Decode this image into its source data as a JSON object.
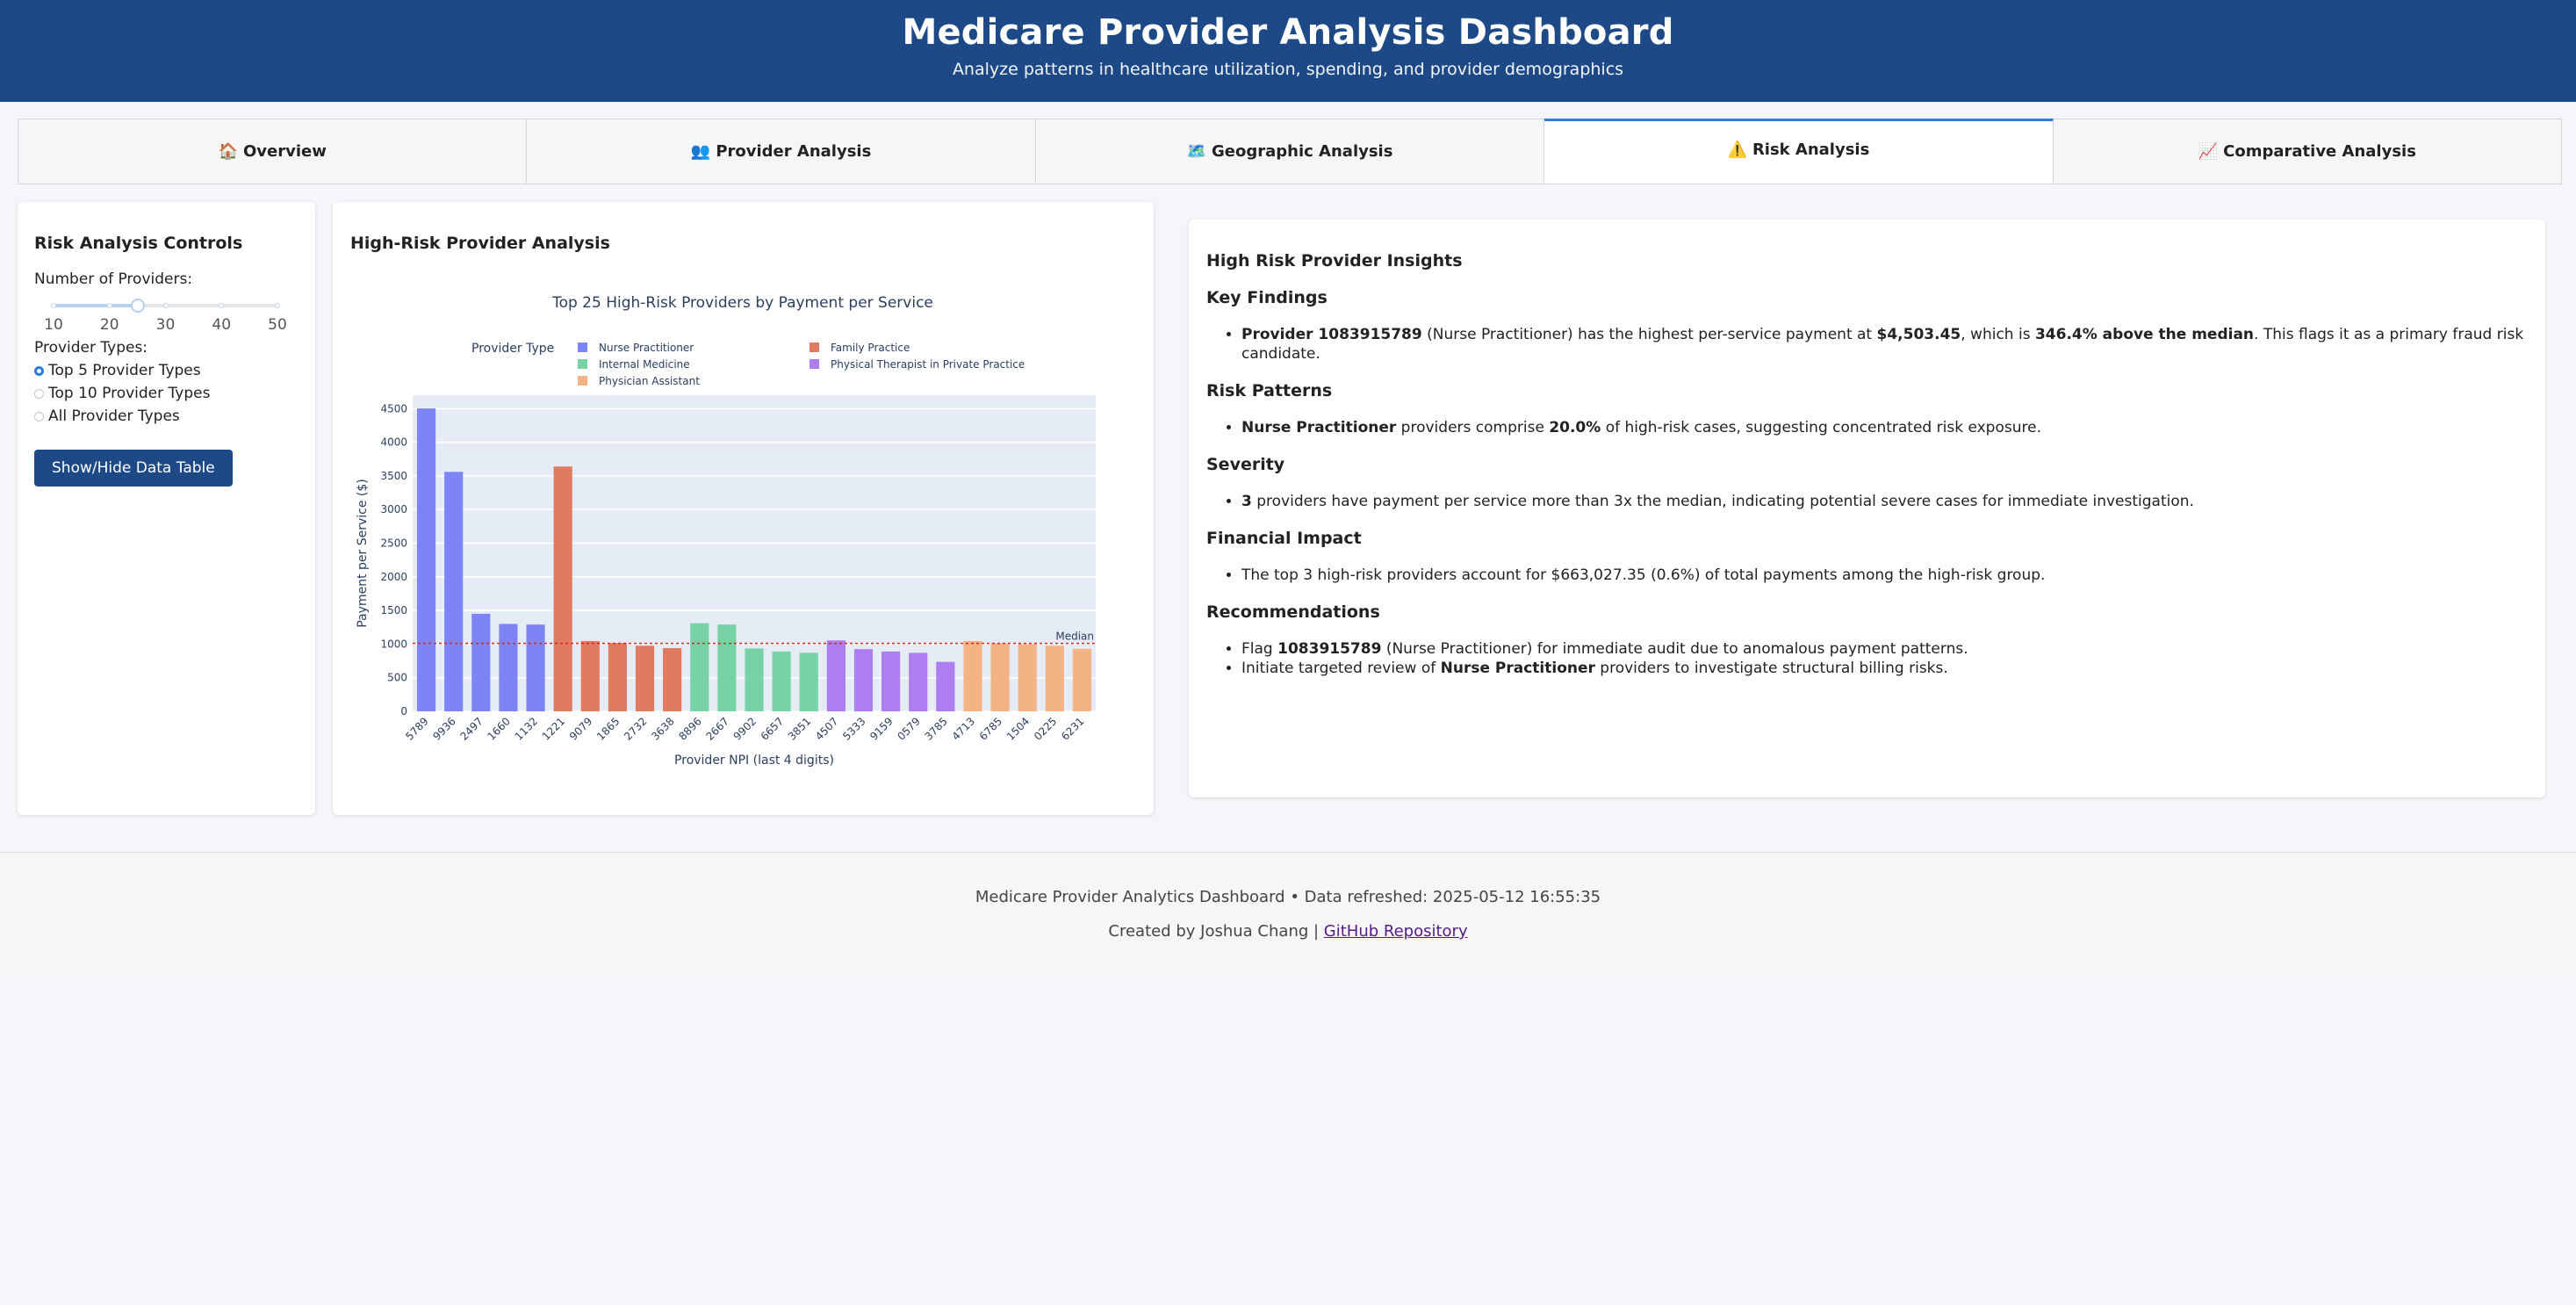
{
  "header": {
    "title": "Medicare Provider Analysis Dashboard",
    "subtitle": "Analyze patterns in healthcare utilization, spending, and provider demographics"
  },
  "tabs": [
    {
      "icon": "🏠",
      "label": "Overview",
      "active": false
    },
    {
      "icon": "👥",
      "label": "Provider Analysis",
      "active": false
    },
    {
      "icon": "🗺️",
      "label": "Geographic Analysis",
      "active": false
    },
    {
      "icon": "⚠️",
      "label": "Risk Analysis",
      "active": true
    },
    {
      "icon": "📈",
      "label": "Comparative Analysis",
      "active": false
    }
  ],
  "controls": {
    "title": "Risk Analysis Controls",
    "providers_label": "Number of Providers:",
    "slider": {
      "min": 10,
      "max": 50,
      "value": 25,
      "marks": [
        "10",
        "20",
        "30",
        "40",
        "50"
      ]
    },
    "types_label": "Provider Types:",
    "radio_options": [
      {
        "label": "Top 5 Provider Types",
        "selected": true
      },
      {
        "label": "Top 10 Provider Types",
        "selected": false
      },
      {
        "label": "All Provider Types",
        "selected": false
      }
    ],
    "toggle_button": "Show/Hide Data Table"
  },
  "chart_card": {
    "title": "High-Risk Provider Analysis"
  },
  "chart_data": {
    "type": "bar",
    "title": "Top 25 High-Risk Providers by Payment per Service",
    "xlabel": "Provider NPI (last 4 digits)",
    "ylabel": "Payment per Service ($)",
    "ylim": [
      0,
      4700
    ],
    "yticks": [
      "0",
      "500",
      "1000",
      "1500",
      "2000",
      "2500",
      "3000",
      "3500",
      "4000",
      "4500"
    ],
    "ytick_values": [
      0,
      500,
      1000,
      1500,
      2000,
      2500,
      3000,
      3500,
      4000,
      4500
    ],
    "legend_title": "Provider Type",
    "legend_position": "top",
    "grid": true,
    "median": {
      "label": "Median",
      "value": 1010,
      "color": "#e0221e"
    },
    "series": [
      {
        "name": "Nurse Practitioner",
        "color": "#7d84f5",
        "categories": [
          "5789",
          "9936",
          "2497",
          "1660",
          "1132"
        ],
        "values": [
          4503,
          3560,
          1450,
          1300,
          1290
        ]
      },
      {
        "name": "Family Practice",
        "color": "#e07a61",
        "categories": [
          "1221",
          "9079",
          "1865",
          "2732",
          "3638"
        ],
        "values": [
          3640,
          1045,
          1015,
          975,
          940
        ]
      },
      {
        "name": "Internal Medicine",
        "color": "#77d3a6",
        "categories": [
          "8896",
          "2667",
          "9902",
          "6657",
          "3851"
        ],
        "values": [
          1310,
          1290,
          935,
          890,
          870
        ]
      },
      {
        "name": "Physical Therapist in Private Practice",
        "color": "#ad7ef0",
        "categories": [
          "4507",
          "5333",
          "9159",
          "0579",
          "3785"
        ],
        "values": [
          1055,
          925,
          890,
          870,
          735
        ]
      },
      {
        "name": "Physician Assistant",
        "color": "#f3b385",
        "categories": [
          "4713",
          "6785",
          "1504",
          "0225",
          "6231"
        ],
        "values": [
          1045,
          1010,
          1000,
          975,
          930
        ]
      }
    ]
  },
  "insights": {
    "title": "High Risk Provider Insights",
    "key_findings": {
      "heading": "Key Findings",
      "t1": "Provider 1083915789",
      "t2": " (Nurse Practitioner) has the highest per-service payment at ",
      "t3": "$4,503.45",
      "t4": ", which is ",
      "t5": "346.4% above the median",
      "t6": ". This flags it as a primary fraud risk candidate."
    },
    "risk_patterns": {
      "heading": "Risk Patterns",
      "t1": "Nurse Practitioner",
      "t2": " providers comprise ",
      "t3": "20.0%",
      "t4": " of high-risk cases, suggesting concentrated risk exposure."
    },
    "severity": {
      "heading": "Severity",
      "t1": "3",
      "t2": " providers have payment per service more than 3x the median, indicating potential severe cases for immediate investigation."
    },
    "financial": {
      "heading": "Financial Impact",
      "t1": "The top 3 high-risk providers account for $663,027.35 (0.6%) of total payments among the high-risk group."
    },
    "recommendations": {
      "heading": "Recommendations",
      "r1_t1": "Flag ",
      "r1_t2": "1083915789",
      "r1_t3": " (Nurse Practitioner) for immediate audit due to anomalous payment patterns.",
      "r2_t1": "Initiate targeted review of ",
      "r2_t2": "Nurse Practitioner",
      "r2_t3": " providers to investigate structural billing risks."
    }
  },
  "footer": {
    "line1": "Medicare Provider Analytics Dashboard • Data refreshed: 2025-05-12 16:55:35",
    "created_by": "Created by Joshua Chang | ",
    "link_label": "GitHub Repository"
  }
}
